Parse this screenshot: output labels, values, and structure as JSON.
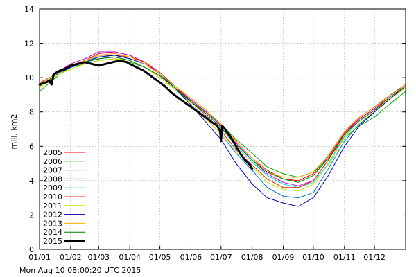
{
  "timestamp": "Mon Aug 10 08:00:20 UTC 2015",
  "chart_data": {
    "type": "line",
    "xlabel": "",
    "ylabel": "mill. km2",
    "xlim": [
      0,
      365
    ],
    "ylim": [
      0,
      14
    ],
    "grid": true,
    "legend_position": "bottom-left",
    "x_ticks": [
      {
        "label": "01/01",
        "day": 0
      },
      {
        "label": "01/02",
        "day": 31
      },
      {
        "label": "01/03",
        "day": 59
      },
      {
        "label": "01/04",
        "day": 90
      },
      {
        "label": "01/05",
        "day": 120
      },
      {
        "label": "01/06",
        "day": 151
      },
      {
        "label": "01/07",
        "day": 181
      },
      {
        "label": "01/08",
        "day": 212
      },
      {
        "label": "01/09",
        "day": 243
      },
      {
        "label": "01/10",
        "day": 273
      },
      {
        "label": "01/11",
        "day": 304
      },
      {
        "label": "01/12",
        "day": 334
      }
    ],
    "y_ticks": [
      0,
      2,
      4,
      6,
      8,
      10,
      12,
      14
    ],
    "series": [
      {
        "name": "2005",
        "color": "#ff0000",
        "width": 1,
        "x": [
          0,
          10,
          20,
          31,
          45,
          59,
          75,
          90,
          105,
          120,
          135,
          151,
          166,
          181,
          196,
          212,
          227,
          243,
          258,
          273,
          288,
          304,
          319,
          334,
          350,
          365
        ],
        "y": [
          9.7,
          10.0,
          10.4,
          10.7,
          11.0,
          11.4,
          11.5,
          11.3,
          10.9,
          10.2,
          9.4,
          8.7,
          8.0,
          7.2,
          6.3,
          5.3,
          4.6,
          4.1,
          4.0,
          4.4,
          5.4,
          6.8,
          7.6,
          8.2,
          8.9,
          9.5
        ]
      },
      {
        "name": "2006",
        "color": "#00aa00",
        "width": 1,
        "x": [
          0,
          10,
          20,
          31,
          45,
          59,
          75,
          90,
          105,
          120,
          135,
          151,
          166,
          181,
          196,
          212,
          227,
          243,
          258,
          273,
          288,
          304,
          319,
          334,
          350,
          365
        ],
        "y": [
          9.2,
          9.7,
          10.2,
          10.6,
          10.8,
          11.0,
          11.1,
          10.9,
          10.6,
          10.0,
          9.3,
          8.6,
          8.0,
          7.3,
          6.4,
          5.6,
          4.8,
          4.4,
          4.2,
          4.5,
          5.3,
          6.5,
          7.2,
          7.7,
          8.5,
          9.2
        ]
      },
      {
        "name": "2007",
        "color": "#0077cc",
        "width": 1,
        "x": [
          0,
          10,
          20,
          31,
          45,
          59,
          75,
          90,
          105,
          120,
          135,
          151,
          166,
          181,
          196,
          212,
          227,
          243,
          258,
          273,
          288,
          304,
          319,
          334,
          350,
          365
        ],
        "y": [
          9.5,
          9.9,
          10.3,
          10.6,
          10.9,
          11.1,
          11.2,
          11.0,
          10.6,
          10.1,
          9.4,
          8.5,
          7.6,
          6.7,
          5.6,
          4.6,
          3.6,
          3.1,
          3.0,
          3.3,
          4.7,
          6.3,
          7.3,
          8.0,
          8.8,
          9.4
        ]
      },
      {
        "name": "2008",
        "color": "#cc00cc",
        "width": 1,
        "x": [
          0,
          10,
          20,
          31,
          45,
          59,
          75,
          90,
          105,
          120,
          135,
          151,
          166,
          181,
          196,
          212,
          227,
          243,
          258,
          273,
          288,
          304,
          319,
          334,
          350,
          365
        ],
        "y": [
          9.6,
          10.0,
          10.4,
          10.8,
          11.1,
          11.5,
          11.5,
          11.3,
          10.9,
          10.2,
          9.5,
          8.7,
          8.0,
          7.2,
          6.2,
          5.2,
          4.4,
          3.9,
          3.7,
          4.0,
          5.2,
          6.7,
          7.6,
          8.2,
          8.9,
          9.5
        ]
      },
      {
        "name": "2009",
        "color": "#00cccc",
        "width": 1,
        "x": [
          0,
          10,
          20,
          31,
          45,
          59,
          75,
          90,
          105,
          120,
          135,
          151,
          166,
          181,
          196,
          212,
          227,
          243,
          258,
          273,
          288,
          304,
          319,
          334,
          350,
          365
        ],
        "y": [
          9.6,
          10.0,
          10.4,
          10.7,
          11.0,
          11.2,
          11.3,
          11.1,
          10.8,
          10.2,
          9.4,
          8.6,
          7.9,
          7.1,
          6.0,
          5.1,
          4.3,
          3.8,
          3.6,
          3.9,
          5.0,
          6.6,
          7.5,
          8.1,
          8.9,
          9.5
        ]
      },
      {
        "name": "2010",
        "color": "#cc3300",
        "width": 1,
        "x": [
          0,
          10,
          20,
          31,
          45,
          59,
          75,
          90,
          105,
          120,
          135,
          151,
          166,
          181,
          196,
          212,
          227,
          243,
          258,
          273,
          288,
          304,
          319,
          334,
          350,
          365
        ],
        "y": [
          9.5,
          9.9,
          10.3,
          10.7,
          11.0,
          11.3,
          11.3,
          11.2,
          10.9,
          10.3,
          9.5,
          8.6,
          7.8,
          6.9,
          5.8,
          4.9,
          4.1,
          3.6,
          3.6,
          4.0,
          5.2,
          6.8,
          7.7,
          8.3,
          9.0,
          9.6
        ]
      },
      {
        "name": "2011",
        "color": "#dddd00",
        "width": 1,
        "x": [
          0,
          10,
          20,
          31,
          45,
          59,
          75,
          90,
          105,
          120,
          135,
          151,
          166,
          181,
          196,
          212,
          227,
          243,
          258,
          273,
          288,
          304,
          319,
          334,
          350,
          365
        ],
        "y": [
          9.4,
          9.8,
          10.2,
          10.5,
          10.8,
          11.0,
          11.1,
          11.0,
          10.6,
          10.0,
          9.3,
          8.5,
          7.6,
          6.7,
          5.7,
          4.8,
          3.9,
          3.5,
          3.4,
          3.8,
          4.9,
          6.5,
          7.4,
          8.1,
          8.8,
          9.4
        ]
      },
      {
        "name": "2012",
        "color": "#0000aa",
        "width": 1,
        "x": [
          0,
          10,
          20,
          31,
          45,
          59,
          75,
          90,
          105,
          120,
          135,
          151,
          166,
          181,
          196,
          212,
          227,
          243,
          258,
          273,
          288,
          304,
          319,
          334,
          350,
          365
        ],
        "y": [
          9.5,
          9.9,
          10.3,
          10.6,
          10.9,
          11.2,
          11.3,
          11.1,
          10.8,
          10.2,
          9.4,
          8.4,
          7.4,
          6.4,
          5.0,
          3.8,
          3.0,
          2.7,
          2.5,
          3.0,
          4.3,
          6.0,
          7.2,
          8.0,
          8.8,
          9.5
        ]
      },
      {
        "name": "2013",
        "color": "#ffaa00",
        "width": 1,
        "x": [
          0,
          10,
          20,
          31,
          45,
          59,
          75,
          90,
          105,
          120,
          135,
          151,
          166,
          181,
          196,
          212,
          227,
          243,
          258,
          273,
          288,
          304,
          319,
          334,
          350,
          365
        ],
        "y": [
          9.6,
          10.0,
          10.4,
          10.7,
          11.0,
          11.3,
          11.4,
          11.2,
          10.8,
          10.2,
          9.5,
          8.8,
          8.1,
          7.3,
          6.3,
          5.3,
          4.5,
          4.2,
          4.2,
          4.5,
          5.5,
          6.9,
          7.7,
          8.3,
          8.9,
          9.6
        ]
      },
      {
        "name": "2014",
        "color": "#007700",
        "width": 1,
        "x": [
          0,
          10,
          20,
          31,
          45,
          59,
          75,
          90,
          105,
          120,
          135,
          151,
          166,
          181,
          196,
          212,
          227,
          243,
          258,
          273,
          288,
          304,
          319,
          334,
          350,
          365
        ],
        "y": [
          9.5,
          9.9,
          10.3,
          10.7,
          10.9,
          11.1,
          11.2,
          11.0,
          10.6,
          10.1,
          9.4,
          8.6,
          7.9,
          7.1,
          6.1,
          5.2,
          4.5,
          4.1,
          3.9,
          4.3,
          5.3,
          6.7,
          7.5,
          8.1,
          8.9,
          9.5
        ]
      },
      {
        "name": "2015",
        "color": "#000000",
        "width": 3,
        "x": [
          0,
          5,
          10,
          12,
          14,
          17,
          20,
          25,
          31,
          38,
          45,
          52,
          59,
          66,
          73,
          80,
          87,
          90,
          97,
          104,
          111,
          118,
          125,
          132,
          139,
          146,
          151,
          158,
          165,
          172,
          177,
          180,
          181,
          182,
          185,
          190,
          196,
          200,
          205,
          210,
          212
        ],
        "y": [
          9.6,
          9.7,
          9.8,
          9.6,
          10.2,
          10.3,
          10.4,
          10.5,
          10.7,
          10.8,
          10.9,
          10.8,
          10.7,
          10.8,
          10.9,
          11.0,
          10.9,
          10.8,
          10.6,
          10.4,
          10.1,
          9.8,
          9.5,
          9.1,
          8.8,
          8.5,
          8.3,
          8.0,
          7.7,
          7.4,
          7.2,
          6.9,
          6.3,
          7.2,
          7.0,
          6.6,
          6.0,
          5.6,
          5.2,
          4.9,
          4.7
        ]
      }
    ]
  }
}
